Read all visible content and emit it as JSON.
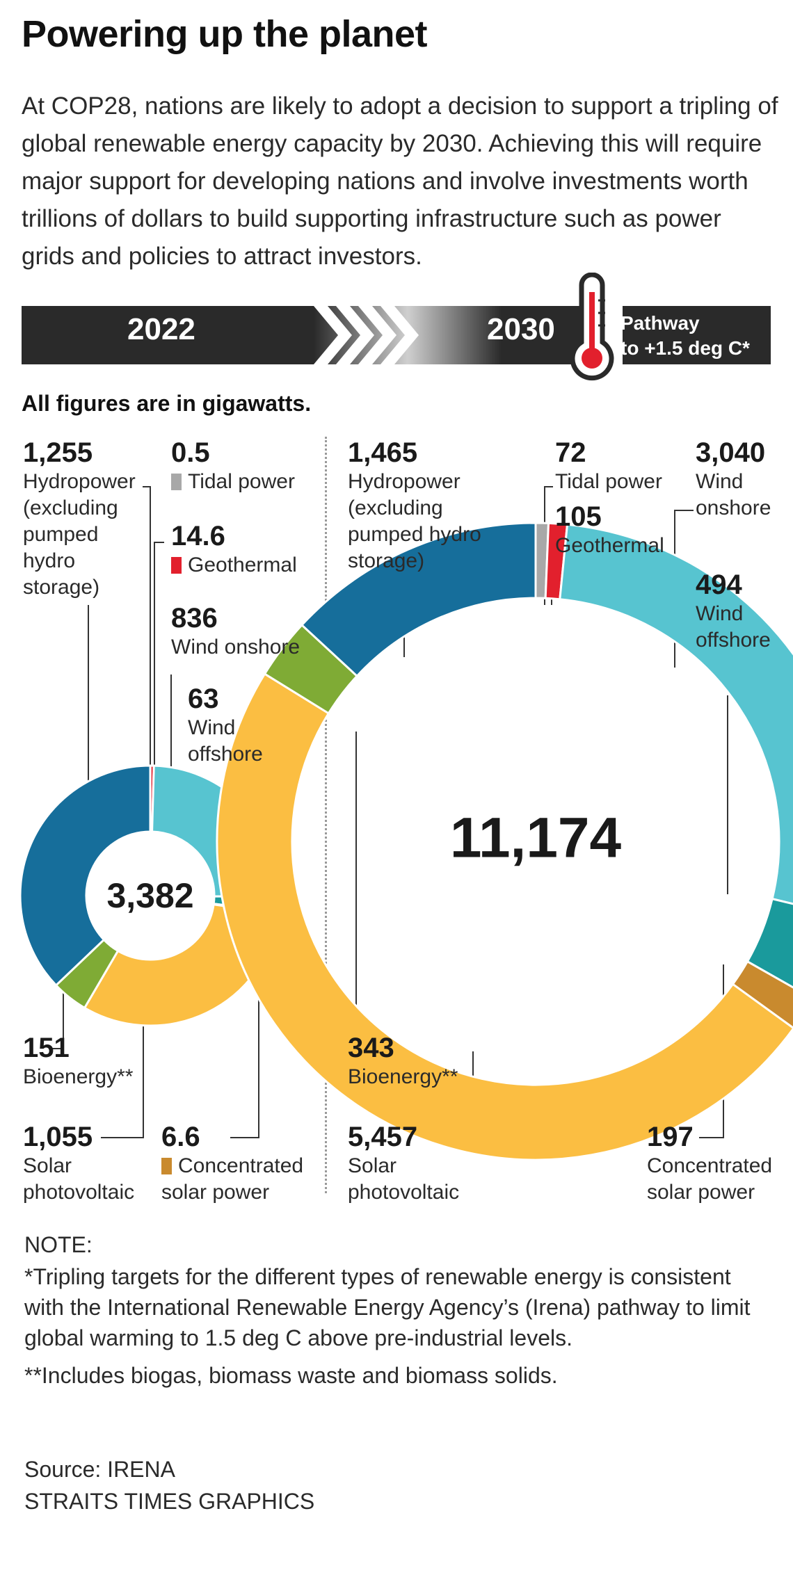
{
  "title": "Powering up the planet",
  "intro": "At COP28, nations are likely to adopt a decision to support a tripling of global renewable energy capacity by 2030. Achieving this will require major support for developing nations and involve investments worth trillions of dollars to build supporting infrastructure such as power grids and policies to attract investors.",
  "banner": {
    "left_year": "2022",
    "right_year": "2030",
    "pathway": "Pathway to +1.5 deg C*",
    "pathway_lines": [
      "Pathway",
      "to +1.5 deg C*"
    ]
  },
  "units_note": "All figures are in gigawatts.",
  "colors": {
    "hydropower": "#166e9b",
    "tidal": "#a8a8a8",
    "geothermal": "#e2202d",
    "wind_onshore": "#57c4d0",
    "wind_offshore": "#1a9a9c",
    "csp": "#c98a2e",
    "solar_pv": "#fbbe42",
    "bioenergy": "#7fab35",
    "banner_dark": "#2a2a2a",
    "thermometer_red": "#e2202d"
  },
  "chart_data": [
    {
      "type": "donut",
      "year": "2022",
      "total": "3,382",
      "units": "gigawatts",
      "slices": [
        {
          "key": "tidal",
          "label": "Tidal power",
          "value": 0.5,
          "value_label": "0.5"
        },
        {
          "key": "geothermal",
          "label": "Geothermal",
          "value": 14.6,
          "value_label": "14.6"
        },
        {
          "key": "wind_onshore",
          "label": "Wind onshore",
          "value": 836,
          "value_label": "836"
        },
        {
          "key": "wind_offshore",
          "label": "Wind offshore",
          "value": 63,
          "value_label": "63"
        },
        {
          "key": "csp",
          "label": "Concentrated solar power",
          "value": 6.6,
          "value_label": "6.6"
        },
        {
          "key": "solar_pv",
          "label": "Solar photovoltaic",
          "value": 1055,
          "value_label": "1,055"
        },
        {
          "key": "bioenergy",
          "label": "Bioenergy**",
          "value": 151,
          "value_label": "151"
        },
        {
          "key": "hydropower",
          "label": "Hydropower (excluding pumped hydro storage)",
          "value": 1255,
          "value_label": "1,255"
        }
      ]
    },
    {
      "type": "donut",
      "year": "2030",
      "total": "11,174",
      "units": "gigawatts",
      "slices": [
        {
          "key": "tidal",
          "label": "Tidal power",
          "value": 72,
          "value_label": "72"
        },
        {
          "key": "geothermal",
          "label": "Geothermal",
          "value": 105,
          "value_label": "105"
        },
        {
          "key": "wind_onshore",
          "label": "Wind onshore",
          "value": 3040,
          "value_label": "3,040"
        },
        {
          "key": "wind_offshore",
          "label": "Wind offshore",
          "value": 494,
          "value_label": "494"
        },
        {
          "key": "csp",
          "label": "Concentrated solar power",
          "value": 197,
          "value_label": "197"
        },
        {
          "key": "solar_pv",
          "label": "Solar photovoltaic",
          "value": 5457,
          "value_label": "5,457"
        },
        {
          "key": "bioenergy",
          "label": "Bioenergy**",
          "value": 343,
          "value_label": "343"
        },
        {
          "key": "hydropower",
          "label": "Hydropower (excluding pumped hydro storage)",
          "value": 1465,
          "value_label": "1,465"
        }
      ]
    }
  ],
  "labels": {
    "l22_hydro": {
      "value": "1,255",
      "name": "Hydropower (excluding pumped hydro storage)"
    },
    "l22_tidal": {
      "value": "0.5",
      "name": "Tidal power"
    },
    "l22_geo": {
      "value": "14.6",
      "name": "Geothermal"
    },
    "l22_won": {
      "value": "836",
      "name": "Wind onshore"
    },
    "l22_woff": {
      "value": "63",
      "name": "Wind offshore"
    },
    "l22_bio": {
      "value": "151",
      "name": "Bioenergy**"
    },
    "l22_solar": {
      "value": "1,055",
      "name": "Solar photovoltaic"
    },
    "l22_csp": {
      "value": "6.6",
      "name": "Concentrated solar power"
    },
    "l30_hydro": {
      "value": "1,465",
      "name": "Hydropower (excluding pumped hydro storage)"
    },
    "l30_tidal": {
      "value": "72",
      "name": "Tidal power"
    },
    "l30_geo": {
      "value": "105",
      "name": "Geothermal"
    },
    "l30_won": {
      "value": "3,040",
      "name": "Wind onshore"
    },
    "l30_woff": {
      "value": "494",
      "name": "Wind offshore"
    },
    "l30_bio": {
      "value": "343",
      "name": "Bioenergy**"
    },
    "l30_solar": {
      "value": "5,457",
      "name": "Solar photovoltaic"
    },
    "l30_csp": {
      "value": "197",
      "name": "Concentrated solar power"
    }
  },
  "notes": {
    "heading": "NOTE:",
    "note1": "*Tripling targets for the different types of renewable energy is consistent with the International Renewable Energy Agency’s (Irena) pathway to limit global warming to 1.5 deg C above pre-industrial levels.",
    "note2": "**Includes biogas, biomass waste and biomass solids."
  },
  "source": "Source: IRENA",
  "credit": "STRAITS TIMES GRAPHICS"
}
